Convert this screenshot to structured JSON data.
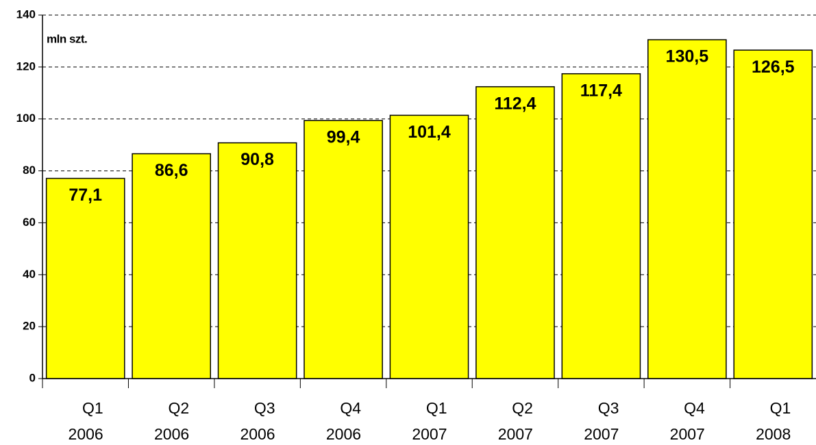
{
  "chart_data": {
    "type": "bar",
    "y_label": "mln szt.",
    "categories": [
      [
        "Q1",
        "2006"
      ],
      [
        "Q2",
        "2006"
      ],
      [
        "Q3",
        "2006"
      ],
      [
        "Q4",
        "2006"
      ],
      [
        "Q1",
        "2007"
      ],
      [
        "Q2",
        "2007"
      ],
      [
        "Q3",
        "2007"
      ],
      [
        "Q4",
        "2007"
      ],
      [
        "Q1",
        "2008"
      ]
    ],
    "values": [
      77.1,
      86.6,
      90.8,
      99.4,
      101.4,
      112.4,
      117.4,
      130.5,
      126.5
    ],
    "value_labels": [
      "77,1",
      "86,6",
      "90,8",
      "99,4",
      "101,4",
      "112,4",
      "117,4",
      "130,5",
      "126,5"
    ],
    "color": "#ffff00",
    "ylim": [
      0,
      140
    ],
    "yticks": [
      0,
      20,
      40,
      60,
      80,
      100,
      120,
      140
    ],
    "grid": true
  }
}
